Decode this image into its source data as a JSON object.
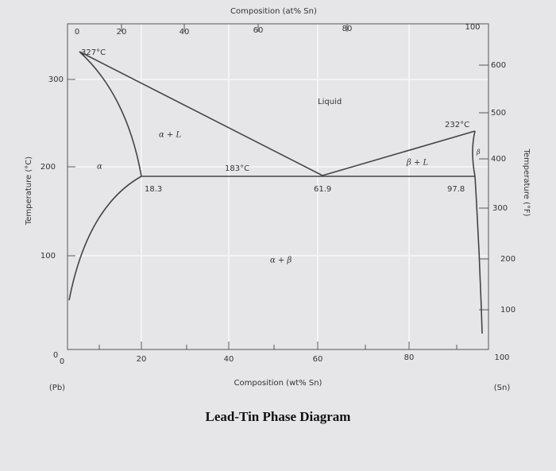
{
  "title": "Lead-Tin Phase Diagram",
  "top_axis": {
    "label": "Composition (at% Sn)",
    "ticks": [
      "0",
      "20",
      "40",
      "60",
      "80",
      "100"
    ]
  },
  "bottom_axis": {
    "label": "Composition (wt% Sn)",
    "ticks": [
      "0",
      "20",
      "40",
      "60",
      "80",
      "100"
    ],
    "end_labels": [
      "(Pb)",
      "(Sn)"
    ]
  },
  "left_axis": {
    "label": "Temperature (°C)",
    "ticks": [
      "0",
      "100",
      "200",
      "300"
    ]
  },
  "right_axis": {
    "label": "Temperature (°F)",
    "ticks": [
      "100",
      "200",
      "300",
      "400",
      "500",
      "600"
    ]
  },
  "annotations": [
    "327°C",
    "232°C",
    "183°C",
    "18.3",
    "61.9",
    "97.8"
  ],
  "regions": [
    "Liquid",
    "α + L",
    "β + L",
    "α",
    "α + β",
    "β"
  ]
}
